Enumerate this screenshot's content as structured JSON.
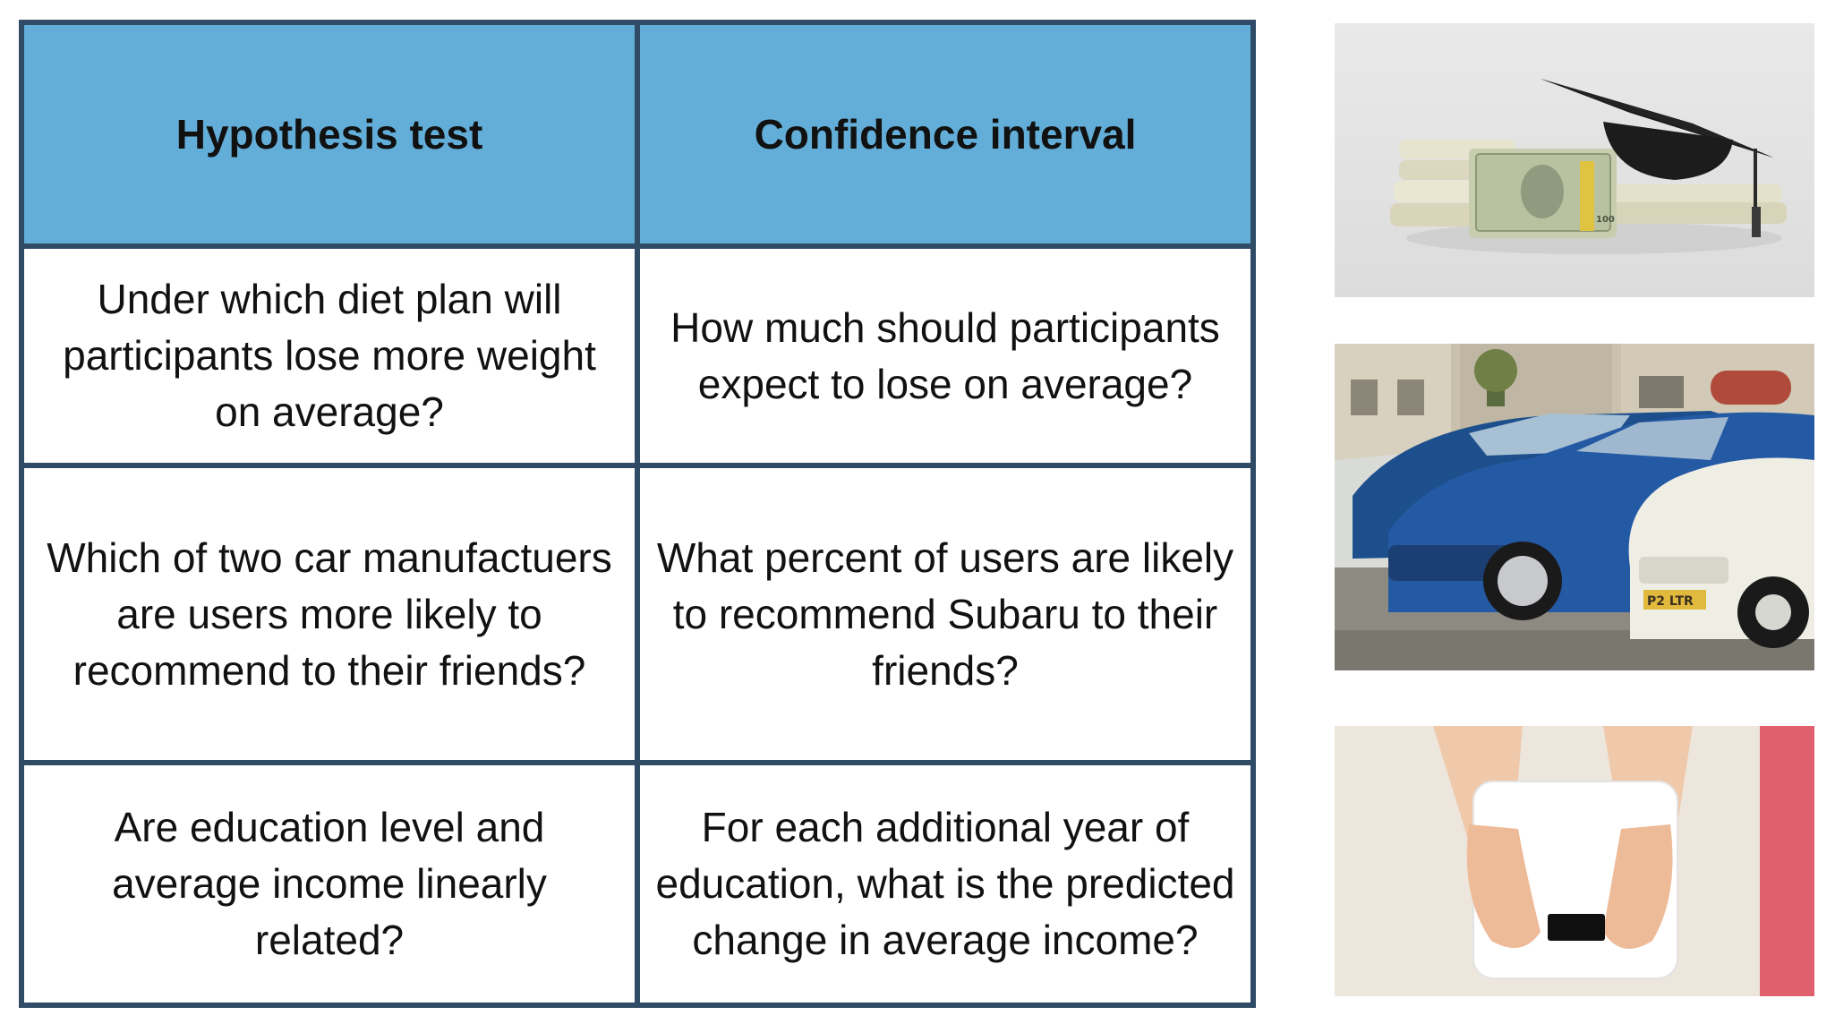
{
  "table": {
    "headers": [
      "Hypothesis test",
      "Confidence interval"
    ],
    "rows": [
      [
        "Under which diet plan will participants lose more weight on average?",
        "How much should participants expect to lose on average?"
      ],
      [
        "Which of two car manufactuers are users more likely to recommend to their friends?",
        "What percent of users are likely to recommend Subaru to their friends?"
      ],
      [
        "Are education level and average income linearly related?",
        "For each additional year of education, what is the predicted change in average income?"
      ]
    ]
  },
  "images": {
    "money": {
      "banknote_text": "100"
    },
    "cars": {
      "plate_text": "P2 LTR"
    }
  },
  "colors": {
    "header_bg": "#63aed8",
    "border": "#2f4b66"
  }
}
